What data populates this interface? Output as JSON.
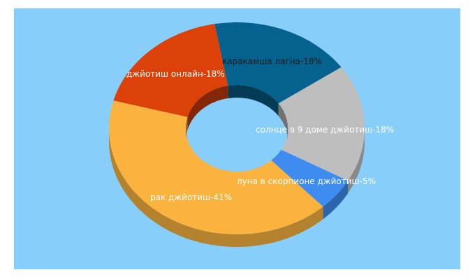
{
  "chart_data": {
    "type": "pie",
    "donut": true,
    "three_d": true,
    "background_color": "#87cefa",
    "title": "",
    "slices": [
      {
        "label": "каракамша лагна",
        "value": 18,
        "color": "#05628e"
      },
      {
        "label": "солнце в 9 доме джйотиш",
        "value": 18,
        "color": "#bebebe"
      },
      {
        "label": "луна в скорпионе джйотиш",
        "value": 5,
        "color": "#3f8cf0"
      },
      {
        "label": "рак джйотиш",
        "value": 41,
        "color": "#fab33f"
      },
      {
        "label": "джйотиш онлайн",
        "value": 18,
        "color": "#dc410a"
      }
    ],
    "labels_text": [
      "каракамша лагна-18%",
      "солнце в 9 доме джйотиш-18%",
      "луна в скорпионе джйотиш-5%",
      "рак джйотиш-41%",
      "джйотиш онлайн-18%"
    ]
  }
}
